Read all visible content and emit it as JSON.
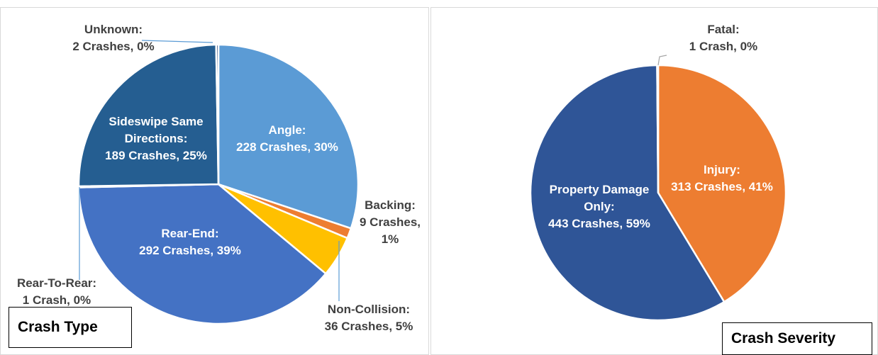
{
  "chart_data": [
    {
      "type": "pie",
      "title": "Crash Type",
      "categories": [
        "Angle:",
        "Backing:",
        "Non-Collision:",
        "Rear-End:",
        "Rear-To-Rear:",
        "Sideswipe Same Directions:",
        "Unknown:"
      ],
      "values": [
        228,
        9,
        36,
        292,
        1,
        189,
        2
      ],
      "value_labels": [
        "228 Crashes, 30%",
        "9 Crashes, 1%",
        "36 Crashes, 5%",
        "292 Crashes, 39%",
        "1 Crash, 0%",
        "189 Crashes, 25%",
        "2 Crashes, 0%"
      ],
      "colors": [
        "#5b9bd5",
        "#ed7d31",
        "#ffc000",
        "#4472c4",
        "#a5a5a5",
        "#255e91",
        "#264478"
      ]
    },
    {
      "type": "pie",
      "title": "Crash Severity",
      "categories": [
        "Injury:",
        "Property Damage Only:",
        "Fatal:"
      ],
      "values": [
        313,
        443,
        1
      ],
      "value_labels": [
        "313 Crashes, 41%",
        "443 Crashes, 59%",
        "1 Crash, 0%"
      ],
      "colors": [
        "#ed7d31",
        "#2f5597",
        "#a5a5a5"
      ]
    }
  ]
}
